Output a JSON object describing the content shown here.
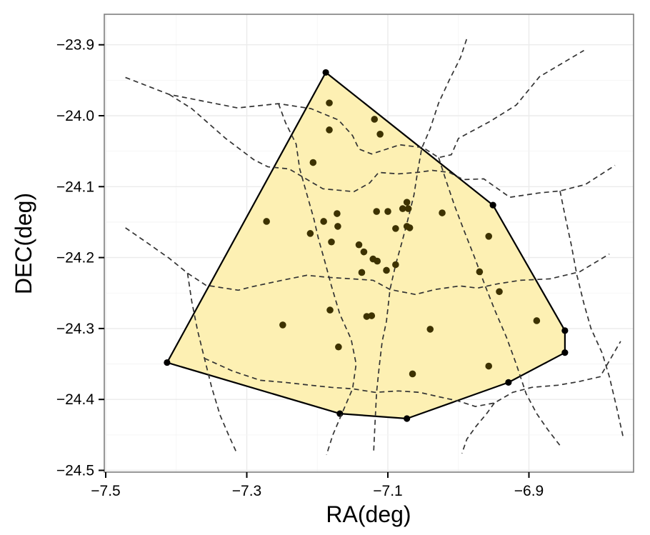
{
  "chart_data": {
    "type": "scatter",
    "xlabel": "RA(deg)",
    "ylabel": "DEC(deg)",
    "xlim": [
      -7.5,
      -6.76
    ],
    "ylim": [
      -24.5,
      -23.86
    ],
    "xticks": [
      -7.5,
      -7.3,
      -7.1,
      -6.9
    ],
    "xtick_labels": [
      "−7.5",
      "−7.3",
      "−7.1",
      "−6.9"
    ],
    "yticks": [
      -24.5,
      -24.4,
      -24.3,
      -24.2,
      -24.1,
      -24.0,
      -23.9
    ],
    "ytick_labels": [
      "−24.5",
      "−24.4",
      "−24.3",
      "−24.2",
      "−24.1",
      "−24.0",
      "−23.9"
    ],
    "grid": true,
    "colors": {
      "hull_fill": "#fdf0b3",
      "hull_edge": "#000000",
      "points": "#3d3200",
      "voronoi": "#333333",
      "grid": "#ebebeb",
      "panel_border": "#7f7f7f"
    },
    "hull": [
      {
        "x": -7.188,
        "y": -23.939
      },
      {
        "x": -6.951,
        "y": -24.126
      },
      {
        "x": -6.849,
        "y": -24.303
      },
      {
        "x": -6.849,
        "y": -24.334
      },
      {
        "x": -6.929,
        "y": -24.376
      },
      {
        "x": -7.073,
        "y": -24.427
      },
      {
        "x": -7.168,
        "y": -24.42
      },
      {
        "x": -7.413,
        "y": -24.348
      }
    ],
    "points": [
      {
        "x": -7.183,
        "y": -23.982
      },
      {
        "x": -7.119,
        "y": -24.005
      },
      {
        "x": -7.183,
        "y": -24.02
      },
      {
        "x": -7.111,
        "y": -24.026
      },
      {
        "x": -7.206,
        "y": -24.066
      },
      {
        "x": -7.073,
        "y": -24.122
      },
      {
        "x": -7.079,
        "y": -24.131
      },
      {
        "x": -7.071,
        "y": -24.131
      },
      {
        "x": -7.116,
        "y": -24.135
      },
      {
        "x": -7.1,
        "y": -24.135
      },
      {
        "x": -7.023,
        "y": -24.137
      },
      {
        "x": -7.172,
        "y": -24.138
      },
      {
        "x": -7.191,
        "y": -24.149
      },
      {
        "x": -7.272,
        "y": -24.149
      },
      {
        "x": -7.073,
        "y": -24.156
      },
      {
        "x": -7.069,
        "y": -24.158
      },
      {
        "x": -7.171,
        "y": -24.156
      },
      {
        "x": -7.089,
        "y": -24.159
      },
      {
        "x": -7.21,
        "y": -24.166
      },
      {
        "x": -6.957,
        "y": -24.17
      },
      {
        "x": -7.18,
        "y": -24.178
      },
      {
        "x": -7.141,
        "y": -24.182
      },
      {
        "x": -7.134,
        "y": -24.192
      },
      {
        "x": -7.121,
        "y": -24.202
      },
      {
        "x": -7.115,
        "y": -24.205
      },
      {
        "x": -7.089,
        "y": -24.21
      },
      {
        "x": -7.102,
        "y": -24.218
      },
      {
        "x": -7.137,
        "y": -24.221
      },
      {
        "x": -6.97,
        "y": -24.22
      },
      {
        "x": -6.942,
        "y": -24.248
      },
      {
        "x": -7.182,
        "y": -24.274
      },
      {
        "x": -7.13,
        "y": -24.283
      },
      {
        "x": -7.123,
        "y": -24.282
      },
      {
        "x": -6.889,
        "y": -24.289
      },
      {
        "x": -7.249,
        "y": -24.295
      },
      {
        "x": -7.04,
        "y": -24.301
      },
      {
        "x": -7.17,
        "y": -24.326
      },
      {
        "x": -6.957,
        "y": -24.353
      },
      {
        "x": -7.065,
        "y": -24.364
      }
    ],
    "voronoi": [
      [
        [
          -7.472,
          -23.946
        ],
        [
          -7.41,
          -23.97
        ],
        [
          -7.313,
          -23.989
        ],
        [
          -7.255,
          -23.983
        ],
        [
          -7.209,
          -23.99
        ],
        [
          -7.17,
          -24.006
        ],
        [
          -7.15,
          -24.028
        ],
        [
          -7.141,
          -24.047
        ],
        [
          -7.123,
          -24.054
        ],
        [
          -7.083,
          -24.041
        ],
        [
          -7.05,
          -24.045
        ],
        [
          -7.028,
          -24.059
        ],
        [
          -7.01,
          -24.055
        ],
        [
          -7.0,
          -24.032
        ],
        [
          -6.955,
          -24.008
        ],
        [
          -6.918,
          -23.985
        ],
        [
          -6.885,
          -23.945
        ],
        [
          -6.822,
          -23.908
        ]
      ],
      [
        [
          -7.41,
          -23.97
        ],
        [
          -7.378,
          -23.99
        ],
        [
          -7.33,
          -24.032
        ],
        [
          -7.29,
          -24.062
        ],
        [
          -7.27,
          -24.072
        ],
        [
          -7.24,
          -24.075
        ],
        [
          -7.192,
          -24.103
        ],
        [
          -7.148,
          -24.107
        ],
        [
          -7.126,
          -24.095
        ],
        [
          -7.113,
          -24.08
        ],
        [
          -7.085,
          -24.082
        ],
        [
          -7.058,
          -24.08
        ],
        [
          -7.037,
          -24.077
        ],
        [
          -7.013,
          -24.08
        ],
        [
          -6.993,
          -24.09
        ],
        [
          -6.964,
          -24.089
        ],
        [
          -6.927,
          -24.115
        ],
        [
          -6.886,
          -24.109
        ],
        [
          -6.856,
          -24.106
        ],
        [
          -6.82,
          -24.097
        ],
        [
          -6.778,
          -24.07
        ]
      ],
      [
        [
          -7.255,
          -23.983
        ],
        [
          -7.245,
          -24.01
        ],
        [
          -7.23,
          -24.04
        ],
        [
          -7.225,
          -24.075
        ],
        [
          -7.215,
          -24.11
        ],
        [
          -7.205,
          -24.145
        ],
        [
          -7.198,
          -24.175
        ],
        [
          -7.19,
          -24.203
        ],
        [
          -7.18,
          -24.24
        ],
        [
          -7.168,
          -24.28
        ],
        [
          -7.152,
          -24.315
        ],
        [
          -7.145,
          -24.35
        ],
        [
          -7.15,
          -24.385
        ],
        [
          -7.163,
          -24.415
        ],
        [
          -7.178,
          -24.45
        ],
        [
          -7.187,
          -24.478
        ]
      ],
      [
        [
          -7.472,
          -24.158
        ],
        [
          -7.44,
          -24.18
        ],
        [
          -7.41,
          -24.201
        ],
        [
          -7.384,
          -24.222
        ],
        [
          -7.358,
          -24.239
        ],
        [
          -7.312,
          -24.246
        ],
        [
          -7.292,
          -24.241
        ],
        [
          -7.25,
          -24.232
        ],
        [
          -7.215,
          -24.225
        ],
        [
          -7.183,
          -24.228
        ],
        [
          -7.15,
          -24.23
        ],
        [
          -7.121,
          -24.232
        ],
        [
          -7.097,
          -24.245
        ],
        [
          -7.061,
          -24.252
        ],
        [
          -7.033,
          -24.245
        ],
        [
          -6.998,
          -24.24
        ],
        [
          -6.973,
          -24.243
        ],
        [
          -6.944,
          -24.237
        ],
        [
          -6.912,
          -24.232
        ],
        [
          -6.87,
          -24.23
        ],
        [
          -6.828,
          -24.22
        ],
        [
          -6.786,
          -24.195
        ]
      ],
      [
        [
          -7.384,
          -24.222
        ],
        [
          -7.378,
          -24.262
        ],
        [
          -7.37,
          -24.302
        ],
        [
          -7.36,
          -24.342
        ],
        [
          -7.35,
          -24.382
        ],
        [
          -7.338,
          -24.422
        ],
        [
          -7.325,
          -24.452
        ],
        [
          -7.314,
          -24.476
        ]
      ],
      [
        [
          -7.36,
          -24.342
        ],
        [
          -7.32,
          -24.36
        ],
        [
          -7.281,
          -24.373
        ],
        [
          -7.245,
          -24.376
        ],
        [
          -7.21,
          -24.38
        ],
        [
          -7.18,
          -24.383
        ],
        [
          -7.15,
          -24.385
        ],
        [
          -7.118,
          -24.39
        ],
        [
          -7.085,
          -24.388
        ],
        [
          -7.055,
          -24.39
        ],
        [
          -7.029,
          -24.396
        ],
        [
          -7.001,
          -24.402
        ],
        [
          -6.976,
          -24.41
        ],
        [
          -6.949,
          -24.405
        ],
        [
          -6.923,
          -24.39
        ],
        [
          -6.896,
          -24.383
        ],
        [
          -6.859,
          -24.38
        ],
        [
          -6.83,
          -24.375
        ],
        [
          -6.799,
          -24.368
        ],
        [
          -6.77,
          -24.318
        ]
      ],
      [
        [
          -7.12,
          -24.472
        ],
        [
          -7.118,
          -24.43
        ],
        [
          -7.116,
          -24.39
        ],
        [
          -7.112,
          -24.352
        ],
        [
          -7.108,
          -24.318
        ],
        [
          -7.102,
          -24.29
        ],
        [
          -7.097,
          -24.245
        ],
        [
          -7.089,
          -24.21
        ],
        [
          -7.08,
          -24.178
        ],
        [
          -7.072,
          -24.148
        ],
        [
          -7.063,
          -24.112
        ],
        [
          -7.058,
          -24.08
        ],
        [
          -7.052,
          -24.046
        ],
        [
          -7.04,
          -24.018
        ],
        [
          -7.028,
          -23.982
        ],
        [
          -7.013,
          -23.95
        ],
        [
          -6.997,
          -23.918
        ],
        [
          -6.987,
          -23.888
        ]
      ],
      [
        [
          -7.028,
          -24.059
        ],
        [
          -7.018,
          -24.09
        ],
        [
          -7.005,
          -24.128
        ],
        [
          -6.992,
          -24.162
        ],
        [
          -6.977,
          -24.2
        ],
        [
          -6.962,
          -24.24
        ],
        [
          -6.948,
          -24.275
        ],
        [
          -6.932,
          -24.312
        ],
        [
          -6.918,
          -24.35
        ],
        [
          -6.904,
          -24.392
        ],
        [
          -6.889,
          -24.42
        ],
        [
          -6.873,
          -24.443
        ],
        [
          -6.856,
          -24.465
        ]
      ],
      [
        [
          -6.949,
          -24.405
        ],
        [
          -6.96,
          -24.42
        ],
        [
          -6.975,
          -24.438
        ],
        [
          -6.988,
          -24.456
        ],
        [
          -6.995,
          -24.476
        ]
      ],
      [
        [
          -6.856,
          -24.106
        ],
        [
          -6.848,
          -24.145
        ],
        [
          -6.84,
          -24.182
        ],
        [
          -6.832,
          -24.225
        ],
        [
          -6.822,
          -24.265
        ],
        [
          -6.812,
          -24.3
        ],
        [
          -6.796,
          -24.335
        ],
        [
          -6.786,
          -24.368
        ],
        [
          -6.776,
          -24.41
        ],
        [
          -6.766,
          -24.455
        ]
      ]
    ]
  }
}
